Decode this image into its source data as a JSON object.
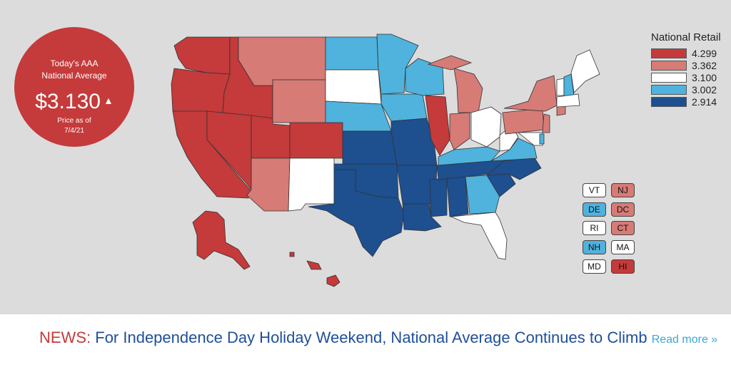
{
  "average": {
    "line1": "Today's AAA",
    "line2": "National Average",
    "price": "$3.130",
    "trend_icon": "triangle-up-icon",
    "asof_line1": "Price as of",
    "asof_line2": "7/4/21"
  },
  "legend": {
    "title": "National Retail",
    "items": [
      {
        "value": "4.299",
        "color": "#c53a3a"
      },
      {
        "value": "3.362",
        "color": "#d67b76"
      },
      {
        "value": "3.100",
        "color": "#ffffff"
      },
      {
        "value": "3.002",
        "color": "#4fb3dd"
      },
      {
        "value": "2.914",
        "color": "#1e4f8f"
      }
    ]
  },
  "small_states": [
    {
      "code": "VT",
      "color": "#ffffff"
    },
    {
      "code": "NJ",
      "color": "#d67b76"
    },
    {
      "code": "DE",
      "color": "#4fb3dd"
    },
    {
      "code": "DC",
      "color": "#d67b76"
    },
    {
      "code": "RI",
      "color": "#ffffff"
    },
    {
      "code": "CT",
      "color": "#d67b76"
    },
    {
      "code": "NH",
      "color": "#4fb3dd"
    },
    {
      "code": "MA",
      "color": "#ffffff"
    },
    {
      "code": "MD",
      "color": "#ffffff"
    },
    {
      "code": "HI",
      "color": "#c53a3a"
    }
  ],
  "news": {
    "prefix": "NEWS:",
    "headline": "For Independence Day Holiday Weekend, National Average Continues to Climb",
    "read_more": "Read more »"
  }
}
